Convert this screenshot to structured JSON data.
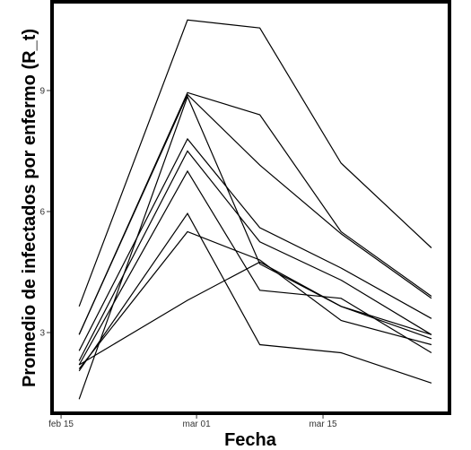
{
  "chart_data": {
    "type": "line",
    "title": "",
    "xlabel": "Fecha",
    "ylabel": "Promedio de infectados por enfermo (R_t)",
    "x": [
      "2020-02-17",
      "2020-02-29",
      "2020-03-08",
      "2020-03-17",
      "2020-03-27"
    ],
    "xlim": [
      "2020-02-14",
      "2020-03-29"
    ],
    "ylim": [
      1.0,
      11.2
    ],
    "x_ticks": [
      {
        "date": "2020-02-15",
        "label": "feb 15"
      },
      {
        "date": "2020-03-01",
        "label": "mar 01"
      },
      {
        "date": "2020-03-15",
        "label": "mar 15"
      }
    ],
    "y_ticks": [
      {
        "value": 3,
        "label": "3"
      },
      {
        "value": 6,
        "label": "6"
      },
      {
        "value": 9,
        "label": "9"
      }
    ],
    "line_color": "#000000",
    "grid": false,
    "legend": "none",
    "series": [
      {
        "values": [
          3.65,
          10.75,
          10.55,
          7.2,
          5.1
        ]
      },
      {
        "values": [
          2.95,
          8.95,
          8.4,
          5.5,
          3.9
        ]
      },
      {
        "values": [
          2.95,
          8.9,
          7.15,
          5.45,
          3.85
        ]
      },
      {
        "values": [
          2.55,
          7.8,
          5.6,
          4.6,
          3.35
        ]
      },
      {
        "values": [
          2.3,
          7.5,
          5.25,
          4.3,
          2.95
        ]
      },
      {
        "values": [
          2.2,
          7.0,
          4.05,
          3.85,
          2.5
        ]
      },
      {
        "values": [
          2.05,
          5.95,
          2.7,
          2.5,
          1.75
        ]
      },
      {
        "values": [
          2.1,
          5.5,
          4.8,
          3.3,
          2.7
        ]
      },
      {
        "values": [
          2.2,
          3.8,
          4.75,
          3.65,
          2.95
        ]
      },
      {
        "values": [
          1.35,
          8.85,
          4.7,
          3.65,
          2.85
        ]
      }
    ]
  }
}
